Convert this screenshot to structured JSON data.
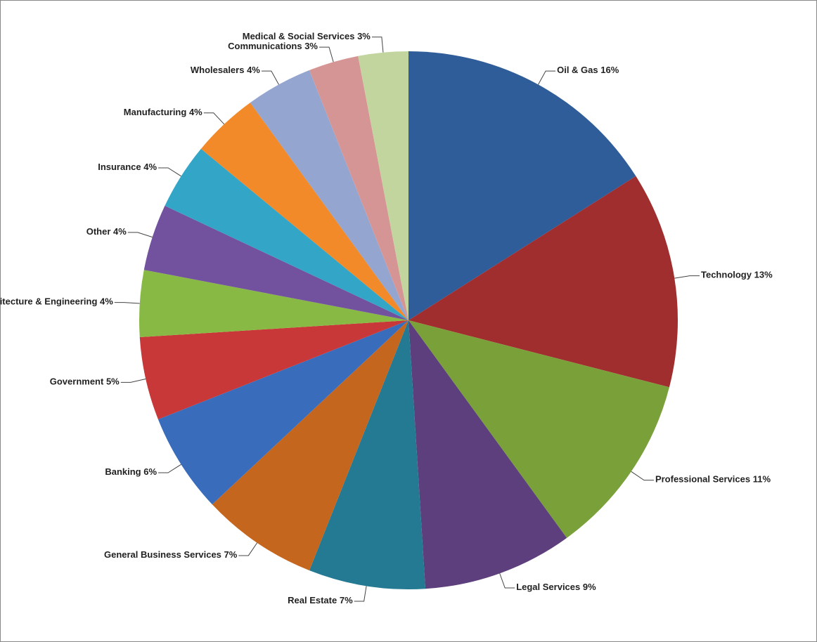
{
  "chart_data": {
    "type": "pie",
    "categories": [
      "Oil & Gas",
      "Technology",
      "Professional Services",
      "Legal Services",
      "Real Estate",
      "General Business Services",
      "Banking",
      "Government",
      "Architecture & Engineering",
      "Other",
      "Insurance",
      "Manufacturing",
      "Wholesalers",
      "Communications",
      "Medical & Social Services"
    ],
    "values": [
      16,
      13,
      11,
      9,
      7,
      7,
      6,
      5,
      4,
      4,
      4,
      4,
      4,
      3,
      3
    ],
    "value_labels": [
      "16%",
      "13%",
      "11%",
      "9%",
      "7%",
      "7%",
      "6%",
      "5%",
      "4%",
      "4%",
      "4%",
      "4%",
      "4%",
      "3%",
      "3%"
    ],
    "colors": [
      "#2f5d9a",
      "#a02e2e",
      "#7aa03a",
      "#5c3f7c",
      "#237a92",
      "#c4661e",
      "#3a6cbc",
      "#c83838",
      "#88b944",
      "#72519e",
      "#33a6c8",
      "#f28a2a",
      "#94a6d0",
      "#d69595",
      "#c2d59f"
    ]
  }
}
